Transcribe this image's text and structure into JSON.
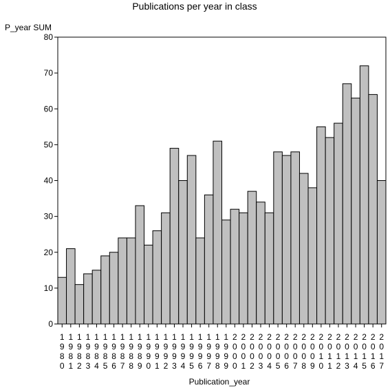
{
  "chart_data": {
    "type": "bar",
    "title": "Publications per year in class",
    "xlabel": "Publication_year",
    "ylabel": "P_year SUM",
    "ylim": [
      0,
      80
    ],
    "yticks": [
      0,
      10,
      20,
      30,
      40,
      50,
      60,
      70,
      80
    ],
    "grid": false,
    "colors": {
      "bar_fill": "#c0c0c0",
      "bar_stroke": "#000000",
      "axis": "#000000"
    },
    "categories": [
      "1980",
      "1981",
      "1982",
      "1983",
      "1984",
      "1985",
      "1986",
      "1987",
      "1988",
      "1989",
      "1990",
      "1991",
      "1992",
      "1993",
      "1994",
      "1995",
      "1996",
      "1997",
      "1998",
      "1999",
      "2000",
      "2001",
      "2002",
      "2003",
      "2004",
      "2005",
      "2006",
      "2007",
      "2008",
      "2009",
      "2010",
      "2011",
      "2012",
      "2013",
      "2014",
      "2015",
      "2016",
      "2017"
    ],
    "values": [
      13,
      21,
      11,
      14,
      15,
      19,
      20,
      24,
      24,
      33,
      22,
      26,
      31,
      49,
      40,
      47,
      24,
      36,
      51,
      29,
      32,
      31,
      37,
      34,
      31,
      48,
      47,
      48,
      42,
      38,
      55,
      52,
      56,
      67,
      63,
      72,
      64,
      40
    ]
  }
}
